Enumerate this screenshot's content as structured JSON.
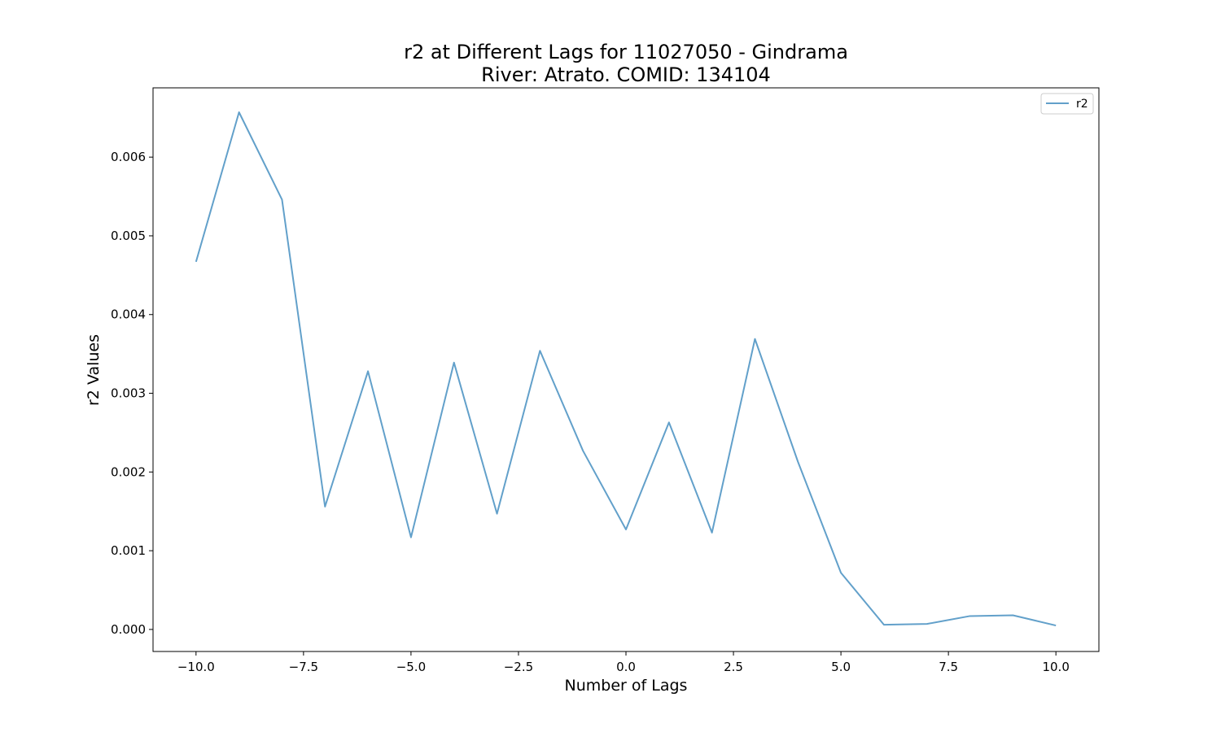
{
  "chart_data": {
    "type": "line",
    "title_line1": "r2 at Different Lags for 11027050 - Gindrama",
    "title_line2": "River: Atrato. COMID: 134104",
    "xlabel": "Number of Lags",
    "ylabel": "r2 Values",
    "xlim": [
      -11.0,
      11.0
    ],
    "ylim": [
      -0.00028,
      0.00688
    ],
    "x_ticks": [
      -10.0,
      -7.5,
      -5.0,
      -2.5,
      0.0,
      2.5,
      5.0,
      7.5,
      10.0
    ],
    "x_tick_labels": [
      "−10.0",
      "−7.5",
      "−5.0",
      "−2.5",
      "0.0",
      "2.5",
      "5.0",
      "7.5",
      "10.0"
    ],
    "y_ticks": [
      0.0,
      0.001,
      0.002,
      0.003,
      0.004,
      0.005,
      0.006
    ],
    "y_tick_labels": [
      "0.000",
      "0.001",
      "0.002",
      "0.003",
      "0.004",
      "0.005",
      "0.006"
    ],
    "grid": false,
    "legend_position": "top-right",
    "series": [
      {
        "name": "r2",
        "color": "#1f77b4",
        "x": [
          -10,
          -9,
          -8,
          -7,
          -6,
          -5,
          -4,
          -3,
          -2,
          -1,
          0,
          1,
          2,
          3,
          4,
          5,
          6,
          7,
          8,
          9,
          10
        ],
        "values": [
          0.00467,
          0.00657,
          0.00546,
          0.00156,
          0.00328,
          0.00117,
          0.00339,
          0.00147,
          0.00354,
          0.00227,
          0.00127,
          0.00263,
          0.00123,
          0.00369,
          0.00213,
          0.00072,
          6e-05,
          7e-05,
          0.00017,
          0.00018,
          5e-05
        ]
      }
    ]
  }
}
